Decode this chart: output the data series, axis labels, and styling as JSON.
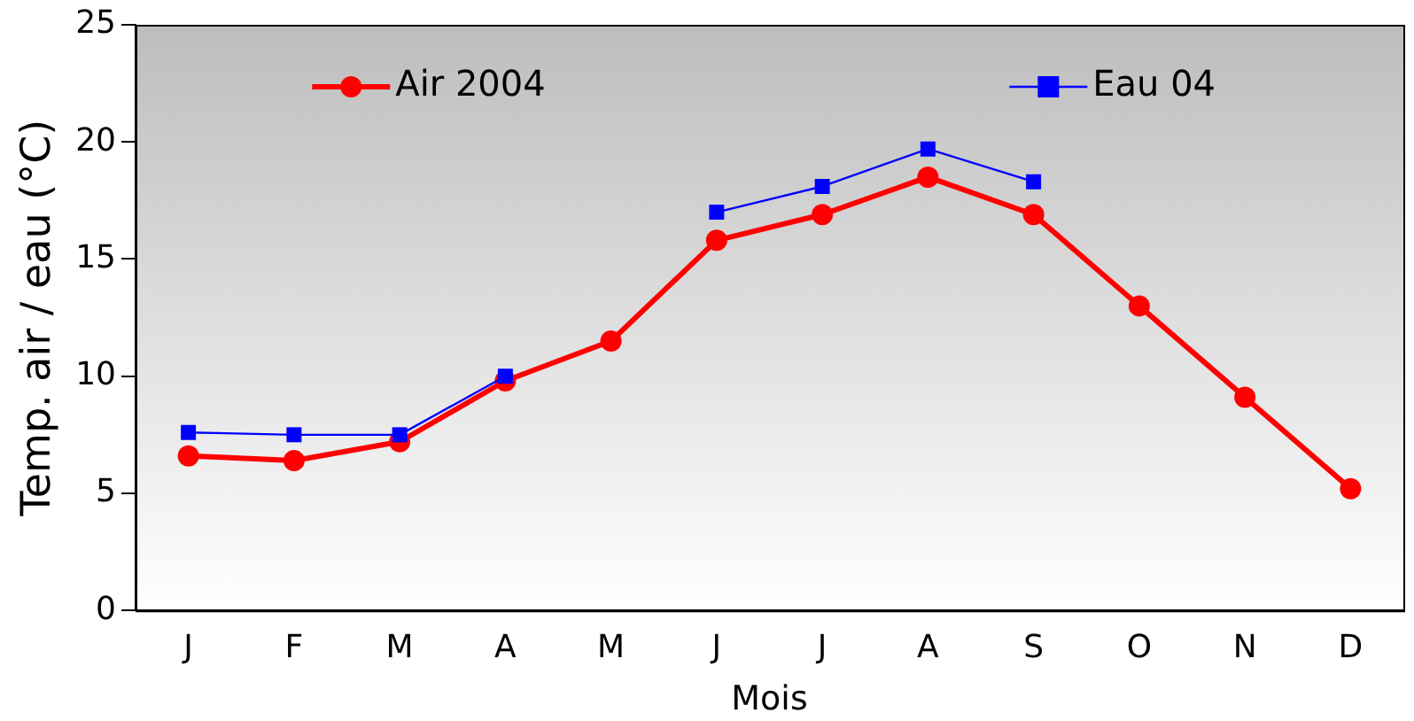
{
  "chart_data": {
    "type": "line",
    "xlabel": "Mois",
    "ylabel": "Temp. air / eau (°C)",
    "categories": [
      "J",
      "F",
      "M",
      "A",
      "M",
      "J",
      "J",
      "A",
      "S",
      "O",
      "N",
      "D"
    ],
    "series": [
      {
        "name": "Air 2004",
        "color": "#ff0000",
        "marker": "circle",
        "values": [
          6.6,
          6.4,
          7.2,
          9.8,
          11.5,
          15.8,
          16.9,
          18.5,
          16.9,
          13.0,
          9.1,
          5.2
        ]
      },
      {
        "name": "Eau 04",
        "color": "#0000ff",
        "marker": "square",
        "values": [
          7.6,
          7.5,
          7.5,
          10.0,
          null,
          17.0,
          18.1,
          19.7,
          18.3,
          null,
          null,
          null
        ]
      }
    ],
    "ylim": [
      0,
      25
    ],
    "yticks": [
      0,
      5,
      10,
      15,
      20,
      25
    ],
    "grid": false,
    "legend": "top"
  }
}
